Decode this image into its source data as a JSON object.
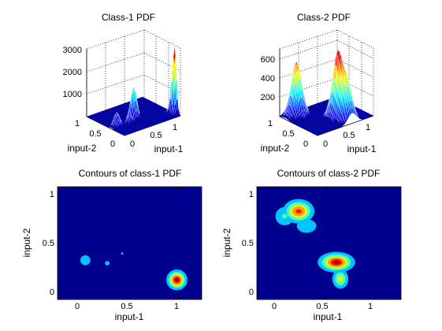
{
  "chart_data": [
    {
      "type": "surface3d",
      "title": "Class-1 PDF",
      "xlabel": "input-1",
      "ylabel": "input-2",
      "xticks": [
        "0",
        "0.5",
        "1"
      ],
      "yticks": [
        "0",
        "0.5",
        "1"
      ],
      "zticks": [
        "1000",
        "2000",
        "3000"
      ],
      "zlim": [
        0,
        3000
      ],
      "colormap": "jet",
      "peaks": [
        {
          "x": 1.0,
          "y": 0.15,
          "z": 2950
        },
        {
          "x": 0.45,
          "y": 0.42,
          "z": 1450
        },
        {
          "x": 0.1,
          "y": 0.35,
          "z": 650
        },
        {
          "x": 0.3,
          "y": 0.3,
          "z": 400
        }
      ]
    },
    {
      "type": "surface3d",
      "title": "Class-2 PDF",
      "xlabel": "input-1",
      "ylabel": "input-2",
      "xticks": [
        "0",
        "0.5",
        "1"
      ],
      "yticks": [
        "0",
        "0.5",
        "1"
      ],
      "zticks": [
        "200",
        "400",
        "600"
      ],
      "zlim": [
        0,
        700
      ],
      "colormap": "jet",
      "peaks": [
        {
          "x": 0.2,
          "y": 0.85,
          "z": 560
        },
        {
          "x": 0.6,
          "y": 0.35,
          "z": 660
        },
        {
          "x": 0.62,
          "y": 0.15,
          "z": 420
        }
      ]
    },
    {
      "type": "contour",
      "title": "Contours of class-1 PDF",
      "xlabel": "input-1",
      "ylabel": "input-2",
      "xticks": [
        "0",
        "0.5",
        "1"
      ],
      "yticks": [
        "0",
        "0.5",
        "1"
      ],
      "xlim": [
        -0.2,
        1.25
      ],
      "ylim": [
        -0.05,
        1.1
      ],
      "colormap": "jet",
      "blobs": [
        {
          "x": 1.0,
          "y": 0.15,
          "sx": 0.045,
          "sy": 0.045,
          "level": 1.0
        },
        {
          "x": 0.08,
          "y": 0.35,
          "sx": 0.04,
          "sy": 0.04,
          "level": 0.22
        },
        {
          "x": 0.3,
          "y": 0.32,
          "sx": 0.02,
          "sy": 0.02,
          "level": 0.2
        },
        {
          "x": 0.45,
          "y": 0.42,
          "sx": 0.007,
          "sy": 0.007,
          "level": 0.3
        }
      ]
    },
    {
      "type": "contour",
      "title": "Contours of class-2 PDF",
      "xlabel": "input-1",
      "ylabel": "input-2",
      "xticks": [
        "0",
        "0.5",
        "1"
      ],
      "yticks": [
        "0",
        "0.5",
        "1"
      ],
      "xlim": [
        -0.2,
        1.25
      ],
      "ylim": [
        -0.05,
        1.1
      ],
      "colormap": "jet",
      "blobs": [
        {
          "x": 0.22,
          "y": 0.85,
          "sx": 0.07,
          "sy": 0.055,
          "level": 0.85
        },
        {
          "x": 0.08,
          "y": 0.8,
          "sx": 0.06,
          "sy": 0.06,
          "level": 0.3
        },
        {
          "x": 0.3,
          "y": 0.7,
          "sx": 0.07,
          "sy": 0.05,
          "level": 0.25
        },
        {
          "x": 0.6,
          "y": 0.33,
          "sx": 0.08,
          "sy": 0.045,
          "level": 0.98
        },
        {
          "x": 0.64,
          "y": 0.16,
          "sx": 0.04,
          "sy": 0.05,
          "level": 0.55
        }
      ]
    }
  ]
}
